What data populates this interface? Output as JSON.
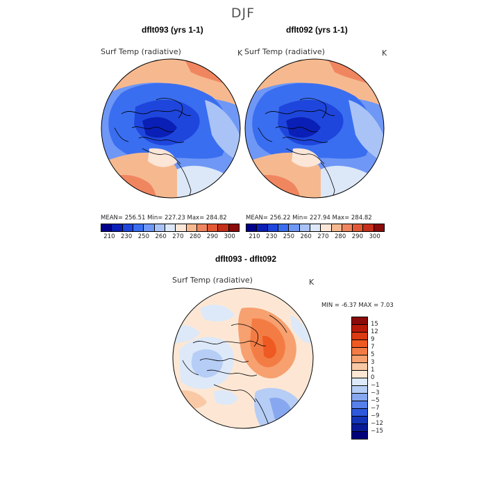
{
  "figure": {
    "title": "DJF"
  },
  "colors": {
    "temp_scale": [
      "#00008b",
      "#0a1fb5",
      "#1e46dc",
      "#3a6ef0",
      "#6f97f5",
      "#a9c3f6",
      "#dce8f8",
      "#fbe6d8",
      "#f6b98f",
      "#f08660",
      "#e25a35",
      "#c5301a",
      "#8b0a0a"
    ],
    "diff_scale": [
      "#8b0a0a",
      "#b81a0a",
      "#dc3a12",
      "#ee5a22",
      "#f37c45",
      "#f7a070",
      "#f9c9a6",
      "#fde7d4",
      "#dde9f8",
      "#b6cdf5",
      "#87a8f0",
      "#5780ea",
      "#2e59dc",
      "#1434b8",
      "#0a1a96",
      "#00007a"
    ],
    "land_outline": "#000000",
    "background": "#ffffff"
  },
  "panels": [
    {
      "id": "dflt093",
      "title": "dflt093 (yrs 1-1)",
      "variable": "Surf Temp (radiative)",
      "units": "K",
      "stats": "MEAN=  256.51    Min=  227.23    Max=  284.82"
    },
    {
      "id": "dflt092",
      "title": "dflt092 (yrs 1-1)",
      "variable": "Surf Temp (radiative)",
      "units": "K",
      "stats": "MEAN=  256.22    Min=  227.94    Max=  284.82"
    }
  ],
  "temp_colorbar": {
    "ticks": [
      "210",
      "230",
      "250",
      "260",
      "270",
      "280",
      "290",
      "300"
    ]
  },
  "difference_panel": {
    "title": "dflt093 - dflt092",
    "variable": "Surf Temp (radiative)",
    "units": "K",
    "stats": "MIN =    -6.37 MAX =     7.03"
  },
  "diff_colorbar": {
    "ticks": [
      "15",
      "12",
      "9",
      "7",
      "5",
      "3",
      "1",
      "0",
      "−1",
      "−3",
      "−5",
      "−7",
      "−9",
      "−12",
      "−15"
    ]
  }
}
